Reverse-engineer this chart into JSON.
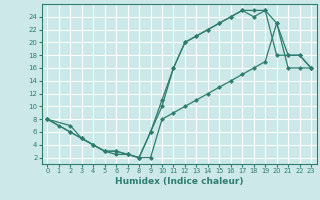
{
  "xlabel": "Humidex (Indice chaleur)",
  "background_color": "#cce8e8",
  "grid_color": "#ffffff",
  "line_color": "#2e7d6e",
  "xlim": [
    -0.5,
    23.5
  ],
  "ylim": [
    1,
    26
  ],
  "xticks": [
    0,
    1,
    2,
    3,
    4,
    5,
    6,
    7,
    8,
    9,
    10,
    11,
    12,
    13,
    14,
    15,
    16,
    17,
    18,
    19,
    20,
    21,
    22,
    23
  ],
  "yticks": [
    2,
    4,
    6,
    8,
    10,
    12,
    14,
    16,
    18,
    20,
    22,
    24
  ],
  "line1_x": [
    0,
    1,
    2,
    3,
    4,
    5,
    6,
    7,
    8,
    9,
    10,
    11,
    12,
    13,
    14,
    15,
    16,
    17,
    18,
    19,
    20,
    21,
    22,
    23
  ],
  "line1_y": [
    8,
    7,
    6,
    5,
    4,
    3,
    2.5,
    2.5,
    2,
    6,
    11,
    16,
    20,
    21,
    22,
    23,
    24,
    25,
    25,
    25,
    18,
    18,
    18,
    16
  ],
  "line2_x": [
    0,
    2,
    3,
    4,
    5,
    6,
    7,
    8,
    9,
    10,
    11,
    12,
    13,
    14,
    15,
    16,
    17,
    18,
    19,
    20,
    21,
    22,
    23
  ],
  "line2_y": [
    8,
    6,
    5,
    4,
    3,
    3,
    2.5,
    2,
    6,
    10,
    16,
    20,
    21,
    22,
    23,
    24,
    25,
    24,
    25,
    23,
    18,
    18,
    16
  ],
  "line3_x": [
    0,
    2,
    3,
    5,
    6,
    7,
    8,
    9,
    10,
    11,
    12,
    13,
    14,
    15,
    16,
    17,
    18,
    19,
    20,
    21,
    22,
    23
  ],
  "line3_y": [
    8,
    7,
    5,
    3,
    3,
    2.5,
    2,
    2,
    8,
    9,
    10,
    11,
    12,
    13,
    14,
    15,
    16,
    17,
    23,
    16,
    16,
    16
  ]
}
